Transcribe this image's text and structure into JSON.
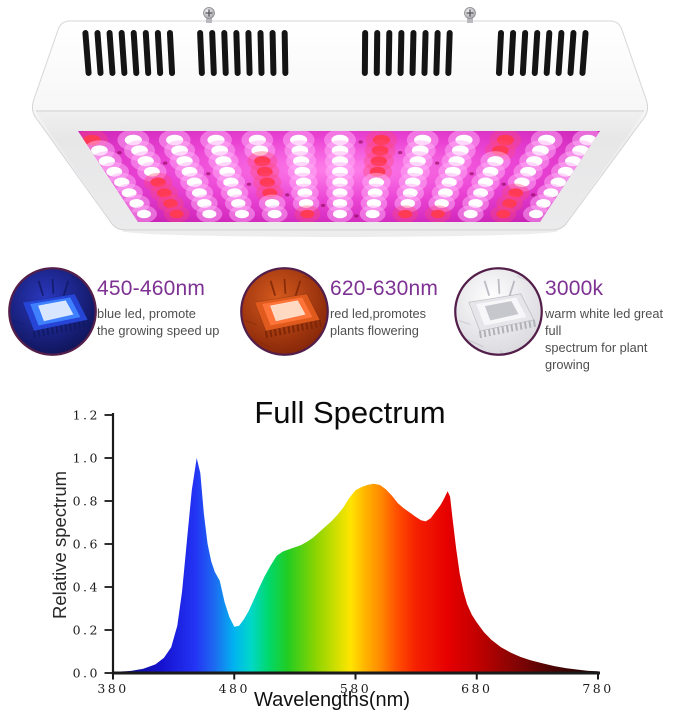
{
  "theme": {
    "accent_purple": "#7d3192",
    "subtext_gray": "#4f4f4f",
    "icon_ring": "#531f4a",
    "chart_ink": "#1a1a1a"
  },
  "hero": {
    "description": "white LED grow-light panel viewed from front-below, magenta LED board glowing",
    "housing_color": "#f5f5f6",
    "vent_color": "#141414",
    "vent_groups": 4,
    "slots_per_group": 8,
    "screws": 2,
    "led_rows": 8,
    "led_cols": 13,
    "led_colors": {
      "white": "#ffffff",
      "red": "#ff3a55",
      "halo_pink": "rgba(255,175,248,0.5)",
      "halo_red": "rgba(255,70,120,0.38)",
      "panel_magenta": "#e23ed2"
    }
  },
  "features": [
    {
      "heading": "450-460nm",
      "lines": [
        "blue led, promote",
        "the growing speed up"
      ],
      "icon": "blue-led-chip-icon",
      "chip": {
        "bg": "#2a38c0",
        "bg_dark": "#090b3e",
        "base": "#2644d6",
        "frame": "#3f80ff",
        "die": "#d8e6ff",
        "pin": "#101a66"
      }
    },
    {
      "heading": "620-630nm",
      "lines": [
        "red led,promotes",
        "plants flowering"
      ],
      "icon": "red-led-chip-icon",
      "chip": {
        "bg": "#d65a1e",
        "bg_dark": "#701802",
        "base": "#e05a1e",
        "frame": "#ff7438",
        "die": "#ffd9c2",
        "pin": "#7e2606"
      }
    },
    {
      "heading": "3000k",
      "lines": [
        "warm white led great full",
        "spectrum for plant growing"
      ],
      "icon": "white-led-chip-icon",
      "chip": {
        "bg": "#ffffff",
        "bg_dark": "#cfcfd6",
        "base": "#e6e6ea",
        "frame": "#f7f7f9",
        "die": "#c6c6cd",
        "pin": "#b0b0b8"
      }
    }
  ],
  "chart_data": {
    "type": "area",
    "title": "Full Spectrum",
    "xlabel": "Wavelengths(nm)",
    "ylabel": "Relative spectrum",
    "xlim": [
      380,
      780
    ],
    "ylim": [
      0,
      1.2
    ],
    "xticks": [
      380,
      480,
      580,
      680,
      780
    ],
    "yticks": [
      0.0,
      0.2,
      0.4,
      0.6,
      0.8,
      1.0,
      1.2
    ],
    "grid": false,
    "fill": "wavelength-rainbow-gradient",
    "gradient_stops": [
      [
        0.0,
        "#0d0d70"
      ],
      [
        0.1,
        "#1512cf"
      ],
      [
        0.17,
        "#2434f5"
      ],
      [
        0.21,
        "#1d6cf0"
      ],
      [
        0.25,
        "#00b4f0"
      ],
      [
        0.285,
        "#00d8c8"
      ],
      [
        0.32,
        "#00d86e"
      ],
      [
        0.36,
        "#22cc22"
      ],
      [
        0.42,
        "#8fd400"
      ],
      [
        0.465,
        "#d8e000"
      ],
      [
        0.49,
        "#ffe400"
      ],
      [
        0.52,
        "#ffb400"
      ],
      [
        0.55,
        "#ff8c00"
      ],
      [
        0.585,
        "#ff5000"
      ],
      [
        0.625,
        "#f52000"
      ],
      [
        0.69,
        "#e60000"
      ],
      [
        0.75,
        "#c30000"
      ],
      [
        0.82,
        "#8c0404"
      ],
      [
        0.9,
        "#4f0404"
      ],
      [
        1.0,
        "#190202"
      ]
    ],
    "points": [
      [
        380,
        0.005
      ],
      [
        395,
        0.01
      ],
      [
        405,
        0.02
      ],
      [
        415,
        0.04
      ],
      [
        422,
        0.07
      ],
      [
        428,
        0.12
      ],
      [
        433,
        0.22
      ],
      [
        437,
        0.38
      ],
      [
        441,
        0.62
      ],
      [
        445,
        0.85
      ],
      [
        449,
        1.0
      ],
      [
        452,
        0.93
      ],
      [
        455,
        0.74
      ],
      [
        458,
        0.6
      ],
      [
        461,
        0.52
      ],
      [
        464,
        0.47
      ],
      [
        468,
        0.43
      ],
      [
        472,
        0.33
      ],
      [
        476,
        0.26
      ],
      [
        480,
        0.215
      ],
      [
        484,
        0.22
      ],
      [
        488,
        0.25
      ],
      [
        492,
        0.29
      ],
      [
        496,
        0.34
      ],
      [
        500,
        0.39
      ],
      [
        505,
        0.45
      ],
      [
        510,
        0.5
      ],
      [
        515,
        0.545
      ],
      [
        520,
        0.565
      ],
      [
        525,
        0.575
      ],
      [
        530,
        0.585
      ],
      [
        535,
        0.595
      ],
      [
        540,
        0.61
      ],
      [
        545,
        0.63
      ],
      [
        550,
        0.655
      ],
      [
        555,
        0.68
      ],
      [
        560,
        0.705
      ],
      [
        565,
        0.735
      ],
      [
        570,
        0.77
      ],
      [
        575,
        0.815
      ],
      [
        580,
        0.85
      ],
      [
        585,
        0.865
      ],
      [
        590,
        0.875
      ],
      [
        595,
        0.88
      ],
      [
        600,
        0.875
      ],
      [
        605,
        0.855
      ],
      [
        610,
        0.825
      ],
      [
        615,
        0.79
      ],
      [
        620,
        0.765
      ],
      [
        625,
        0.745
      ],
      [
        630,
        0.725
      ],
      [
        634,
        0.71
      ],
      [
        638,
        0.705
      ],
      [
        642,
        0.72
      ],
      [
        646,
        0.75
      ],
      [
        650,
        0.78
      ],
      [
        653,
        0.81
      ],
      [
        656,
        0.845
      ],
      [
        658,
        0.82
      ],
      [
        660,
        0.72
      ],
      [
        663,
        0.58
      ],
      [
        666,
        0.46
      ],
      [
        669,
        0.38
      ],
      [
        672,
        0.32
      ],
      [
        676,
        0.27
      ],
      [
        680,
        0.235
      ],
      [
        686,
        0.19
      ],
      [
        692,
        0.155
      ],
      [
        700,
        0.12
      ],
      [
        708,
        0.095
      ],
      [
        716,
        0.075
      ],
      [
        724,
        0.06
      ],
      [
        734,
        0.045
      ],
      [
        744,
        0.032
      ],
      [
        754,
        0.022
      ],
      [
        764,
        0.015
      ],
      [
        772,
        0.01
      ],
      [
        780,
        0.008
      ]
    ]
  }
}
